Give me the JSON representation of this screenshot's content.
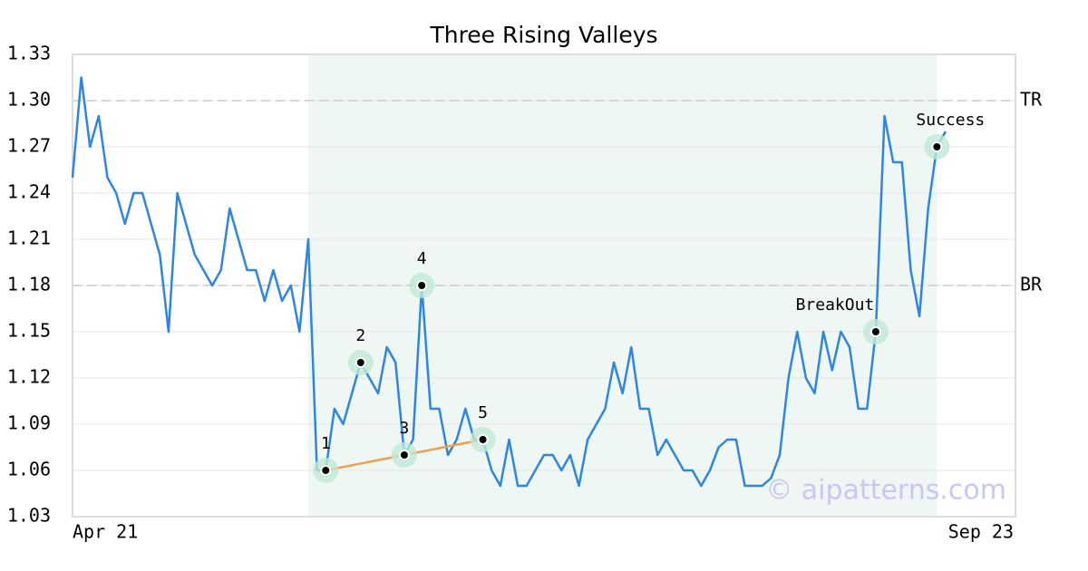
{
  "chart_data": {
    "type": "line",
    "title": "Three Rising Valleys",
    "x": [
      0,
      1,
      2,
      3,
      4,
      5,
      6,
      7,
      8,
      9,
      10,
      11,
      12,
      13,
      14,
      15,
      16,
      17,
      18,
      19,
      20,
      21,
      22,
      23,
      24,
      25,
      26,
      27,
      28,
      29,
      30,
      31,
      32,
      33,
      34,
      35,
      36,
      37,
      38,
      39,
      40,
      41,
      42,
      43,
      44,
      45,
      46,
      47,
      48,
      49,
      50,
      51,
      52,
      53,
      54,
      55,
      56,
      57,
      58,
      59,
      60,
      61,
      62,
      63,
      64,
      65,
      66,
      67,
      68,
      69,
      70,
      71,
      72,
      73,
      74,
      75,
      76,
      77,
      78,
      79,
      80,
      81,
      82,
      83,
      84,
      85,
      86,
      87,
      88,
      89,
      90,
      91,
      92,
      93,
      94,
      95,
      96,
      97,
      98,
      99,
      100
    ],
    "series": [
      {
        "color": "#2e86de",
        "values": [
          1.25,
          1.315,
          1.27,
          1.29,
          1.25,
          1.24,
          1.22,
          1.24,
          1.24,
          1.22,
          1.2,
          1.15,
          1.24,
          1.22,
          1.2,
          1.19,
          1.18,
          1.19,
          1.23,
          1.21,
          1.19,
          1.19,
          1.17,
          1.19,
          1.17,
          1.18,
          1.15,
          1.21,
          1.06,
          1.06,
          1.1,
          1.09,
          1.11,
          1.13,
          1.12,
          1.11,
          1.14,
          1.13,
          1.07,
          1.08,
          1.18,
          1.1,
          1.1,
          1.07,
          1.08,
          1.1,
          1.08,
          1.08,
          1.06,
          1.05,
          1.08,
          1.05,
          1.05,
          1.06,
          1.07,
          1.07,
          1.06,
          1.07,
          1.05,
          1.08,
          1.09,
          1.1,
          1.13,
          1.11,
          1.14,
          1.1,
          1.1,
          1.07,
          1.08,
          1.07,
          1.06,
          1.06,
          1.05,
          1.06,
          1.075,
          1.08,
          1.08,
          1.05,
          1.05,
          1.05,
          1.055,
          1.07,
          1.12,
          1.15,
          1.12,
          1.11,
          1.15,
          1.125,
          1.15,
          1.14,
          1.1,
          1.1,
          1.15,
          1.29,
          1.26,
          1.26,
          1.19,
          1.16,
          1.23,
          1.27,
          1.28
        ]
      }
    ],
    "xlim": [
      0,
      108
    ],
    "xticks": [
      {
        "value": 0,
        "label": "Apr 21"
      },
      {
        "value": 108,
        "label": "Sep 23"
      }
    ],
    "ylim": [
      1.03,
      1.33
    ],
    "yticks": [
      1.03,
      1.06,
      1.09,
      1.12,
      1.15,
      1.18,
      1.21,
      1.24,
      1.27,
      {
        "value": 1.3,
        "label": "1.30"
      },
      1.33
    ],
    "grid": true,
    "highlight_range": [
      27,
      99
    ],
    "highlight_color": "#eef7f3",
    "levels": [
      {
        "value": 1.3,
        "label": "TR"
      },
      {
        "value": 1.18,
        "label": "BR"
      }
    ],
    "annotations": [
      {
        "label": "1",
        "x": 29,
        "y": 1.06
      },
      {
        "label": "2",
        "x": 33,
        "y": 1.13
      },
      {
        "label": "3",
        "x": 38,
        "y": 1.07
      },
      {
        "label": "4",
        "x": 40,
        "y": 1.18
      },
      {
        "label": "5",
        "x": 47,
        "y": 1.08
      },
      {
        "label": "BreakOut",
        "x": 92,
        "y": 1.15
      },
      {
        "label": "Success",
        "x": 99,
        "y": 1.27
      }
    ],
    "valley_line": [
      0,
      2,
      4
    ],
    "valley_color": "#f0a04b",
    "watermark": "© aipatterns.com"
  }
}
